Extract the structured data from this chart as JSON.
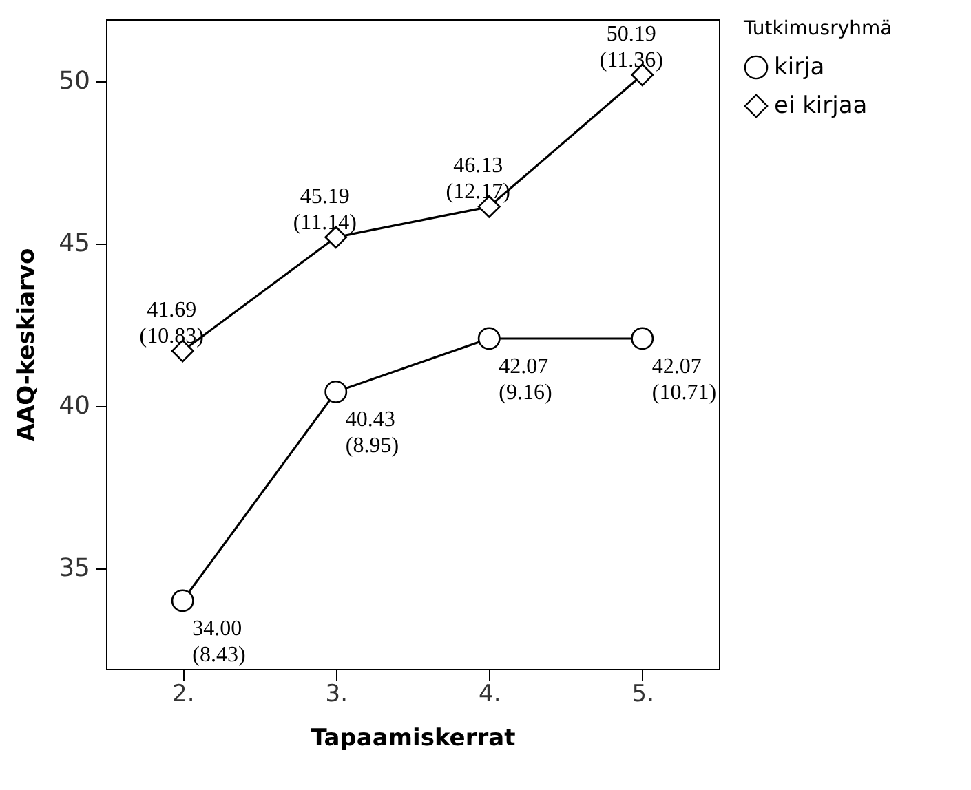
{
  "chart_data": {
    "type": "line",
    "xlabel": "Tapaamiskerrat",
    "ylabel": "AAQ-keskiarvo",
    "legend_title": "Tutkimusryhmä",
    "categories": [
      "2.",
      "3.",
      "4.",
      "5."
    ],
    "series": [
      {
        "name": "kirja",
        "color": "#000000",
        "marker": "circle",
        "values": [
          34.0,
          40.43,
          42.07,
          42.07
        ],
        "value_labels": [
          "34.00\n(8.43)",
          "40.43\n(8.95)",
          "42.07\n(9.16)",
          "42.07\n(10.71)"
        ]
      },
      {
        "name": "ei kirjaa",
        "color": "#000000",
        "marker": "diamond",
        "values": [
          41.69,
          45.19,
          46.13,
          50.19
        ],
        "value_labels": [
          "41.69\n(10.83)",
          "45.19\n(11.14)",
          "46.13\n(12.17)",
          "50.19\n(11.36)"
        ]
      }
    ],
    "ylim": [
      31.9,
      51.9
    ],
    "yticks": [
      35,
      40,
      45,
      50
    ],
    "grid": false,
    "legend": "top right"
  }
}
